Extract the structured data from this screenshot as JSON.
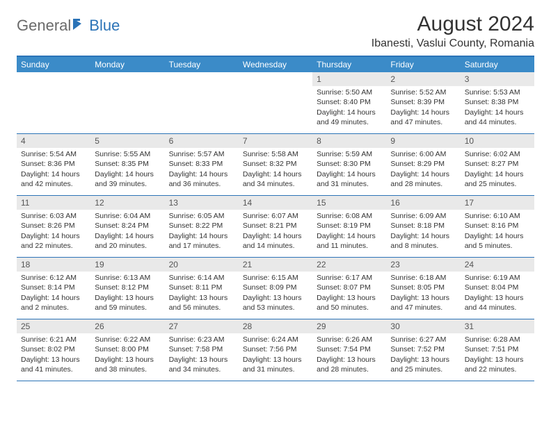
{
  "logo": {
    "text_general": "General",
    "text_blue": "Blue"
  },
  "title": "August 2024",
  "location": "Ibanesti, Vaslui County, Romania",
  "colors": {
    "accent": "#2b73b7",
    "header_bg": "#3b8bc8",
    "daynum_bg": "#e9e9e9",
    "text": "#333333"
  },
  "weekdays": [
    "Sunday",
    "Monday",
    "Tuesday",
    "Wednesday",
    "Thursday",
    "Friday",
    "Saturday"
  ],
  "weeks": [
    [
      {
        "n": "",
        "sr": "",
        "ss": "",
        "dl": ""
      },
      {
        "n": "",
        "sr": "",
        "ss": "",
        "dl": ""
      },
      {
        "n": "",
        "sr": "",
        "ss": "",
        "dl": ""
      },
      {
        "n": "",
        "sr": "",
        "ss": "",
        "dl": ""
      },
      {
        "n": "1",
        "sr": "Sunrise: 5:50 AM",
        "ss": "Sunset: 8:40 PM",
        "dl": "Daylight: 14 hours and 49 minutes."
      },
      {
        "n": "2",
        "sr": "Sunrise: 5:52 AM",
        "ss": "Sunset: 8:39 PM",
        "dl": "Daylight: 14 hours and 47 minutes."
      },
      {
        "n": "3",
        "sr": "Sunrise: 5:53 AM",
        "ss": "Sunset: 8:38 PM",
        "dl": "Daylight: 14 hours and 44 minutes."
      }
    ],
    [
      {
        "n": "4",
        "sr": "Sunrise: 5:54 AM",
        "ss": "Sunset: 8:36 PM",
        "dl": "Daylight: 14 hours and 42 minutes."
      },
      {
        "n": "5",
        "sr": "Sunrise: 5:55 AM",
        "ss": "Sunset: 8:35 PM",
        "dl": "Daylight: 14 hours and 39 minutes."
      },
      {
        "n": "6",
        "sr": "Sunrise: 5:57 AM",
        "ss": "Sunset: 8:33 PM",
        "dl": "Daylight: 14 hours and 36 minutes."
      },
      {
        "n": "7",
        "sr": "Sunrise: 5:58 AM",
        "ss": "Sunset: 8:32 PM",
        "dl": "Daylight: 14 hours and 34 minutes."
      },
      {
        "n": "8",
        "sr": "Sunrise: 5:59 AM",
        "ss": "Sunset: 8:30 PM",
        "dl": "Daylight: 14 hours and 31 minutes."
      },
      {
        "n": "9",
        "sr": "Sunrise: 6:00 AM",
        "ss": "Sunset: 8:29 PM",
        "dl": "Daylight: 14 hours and 28 minutes."
      },
      {
        "n": "10",
        "sr": "Sunrise: 6:02 AM",
        "ss": "Sunset: 8:27 PM",
        "dl": "Daylight: 14 hours and 25 minutes."
      }
    ],
    [
      {
        "n": "11",
        "sr": "Sunrise: 6:03 AM",
        "ss": "Sunset: 8:26 PM",
        "dl": "Daylight: 14 hours and 22 minutes."
      },
      {
        "n": "12",
        "sr": "Sunrise: 6:04 AM",
        "ss": "Sunset: 8:24 PM",
        "dl": "Daylight: 14 hours and 20 minutes."
      },
      {
        "n": "13",
        "sr": "Sunrise: 6:05 AM",
        "ss": "Sunset: 8:22 PM",
        "dl": "Daylight: 14 hours and 17 minutes."
      },
      {
        "n": "14",
        "sr": "Sunrise: 6:07 AM",
        "ss": "Sunset: 8:21 PM",
        "dl": "Daylight: 14 hours and 14 minutes."
      },
      {
        "n": "15",
        "sr": "Sunrise: 6:08 AM",
        "ss": "Sunset: 8:19 PM",
        "dl": "Daylight: 14 hours and 11 minutes."
      },
      {
        "n": "16",
        "sr": "Sunrise: 6:09 AM",
        "ss": "Sunset: 8:18 PM",
        "dl": "Daylight: 14 hours and 8 minutes."
      },
      {
        "n": "17",
        "sr": "Sunrise: 6:10 AM",
        "ss": "Sunset: 8:16 PM",
        "dl": "Daylight: 14 hours and 5 minutes."
      }
    ],
    [
      {
        "n": "18",
        "sr": "Sunrise: 6:12 AM",
        "ss": "Sunset: 8:14 PM",
        "dl": "Daylight: 14 hours and 2 minutes."
      },
      {
        "n": "19",
        "sr": "Sunrise: 6:13 AM",
        "ss": "Sunset: 8:12 PM",
        "dl": "Daylight: 13 hours and 59 minutes."
      },
      {
        "n": "20",
        "sr": "Sunrise: 6:14 AM",
        "ss": "Sunset: 8:11 PM",
        "dl": "Daylight: 13 hours and 56 minutes."
      },
      {
        "n": "21",
        "sr": "Sunrise: 6:15 AM",
        "ss": "Sunset: 8:09 PM",
        "dl": "Daylight: 13 hours and 53 minutes."
      },
      {
        "n": "22",
        "sr": "Sunrise: 6:17 AM",
        "ss": "Sunset: 8:07 PM",
        "dl": "Daylight: 13 hours and 50 minutes."
      },
      {
        "n": "23",
        "sr": "Sunrise: 6:18 AM",
        "ss": "Sunset: 8:05 PM",
        "dl": "Daylight: 13 hours and 47 minutes."
      },
      {
        "n": "24",
        "sr": "Sunrise: 6:19 AM",
        "ss": "Sunset: 8:04 PM",
        "dl": "Daylight: 13 hours and 44 minutes."
      }
    ],
    [
      {
        "n": "25",
        "sr": "Sunrise: 6:21 AM",
        "ss": "Sunset: 8:02 PM",
        "dl": "Daylight: 13 hours and 41 minutes."
      },
      {
        "n": "26",
        "sr": "Sunrise: 6:22 AM",
        "ss": "Sunset: 8:00 PM",
        "dl": "Daylight: 13 hours and 38 minutes."
      },
      {
        "n": "27",
        "sr": "Sunrise: 6:23 AM",
        "ss": "Sunset: 7:58 PM",
        "dl": "Daylight: 13 hours and 34 minutes."
      },
      {
        "n": "28",
        "sr": "Sunrise: 6:24 AM",
        "ss": "Sunset: 7:56 PM",
        "dl": "Daylight: 13 hours and 31 minutes."
      },
      {
        "n": "29",
        "sr": "Sunrise: 6:26 AM",
        "ss": "Sunset: 7:54 PM",
        "dl": "Daylight: 13 hours and 28 minutes."
      },
      {
        "n": "30",
        "sr": "Sunrise: 6:27 AM",
        "ss": "Sunset: 7:52 PM",
        "dl": "Daylight: 13 hours and 25 minutes."
      },
      {
        "n": "31",
        "sr": "Sunrise: 6:28 AM",
        "ss": "Sunset: 7:51 PM",
        "dl": "Daylight: 13 hours and 22 minutes."
      }
    ]
  ]
}
